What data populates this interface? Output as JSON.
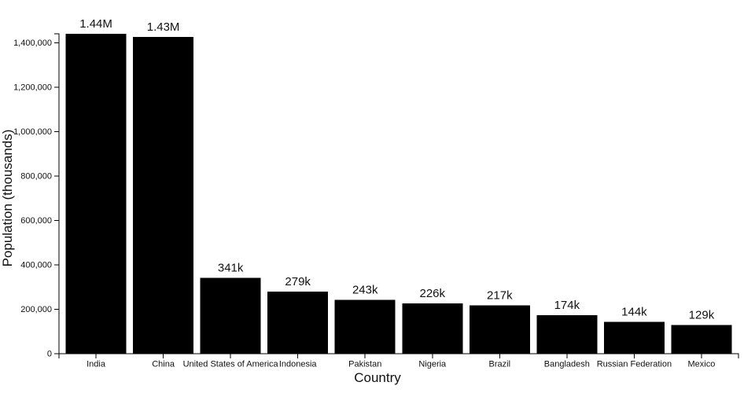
{
  "chart_data": {
    "type": "bar",
    "title": "",
    "xlabel": "Country",
    "ylabel": "Population (thousands)",
    "categories": [
      "India",
      "China",
      "United States of America",
      "Indonesia",
      "Pakistan",
      "Nigeria",
      "Brazil",
      "Bangladesh",
      "Russian Federation",
      "Mexico"
    ],
    "values": [
      1440000,
      1426000,
      341000,
      279000,
      243000,
      226000,
      217000,
      174000,
      144000,
      129000
    ],
    "bar_labels": [
      "1.44M",
      "1.43M",
      "341k",
      "279k",
      "243k",
      "226k",
      "217k",
      "174k",
      "144k",
      "129k"
    ],
    "ylim": [
      0,
      1440000
    ],
    "y_ticks": [
      0,
      200000,
      400000,
      600000,
      800000,
      1000000,
      1200000,
      1400000
    ],
    "y_tick_labels": [
      "0",
      "200,000",
      "400,000",
      "600,000",
      "800,000",
      "1,000,000",
      "1,200,000",
      "1,400,000"
    ],
    "grid": false,
    "legend": false,
    "bar_color": "#000000",
    "axis_color": "#000000",
    "text_color": "#111111",
    "background_color": "#ffffff"
  }
}
